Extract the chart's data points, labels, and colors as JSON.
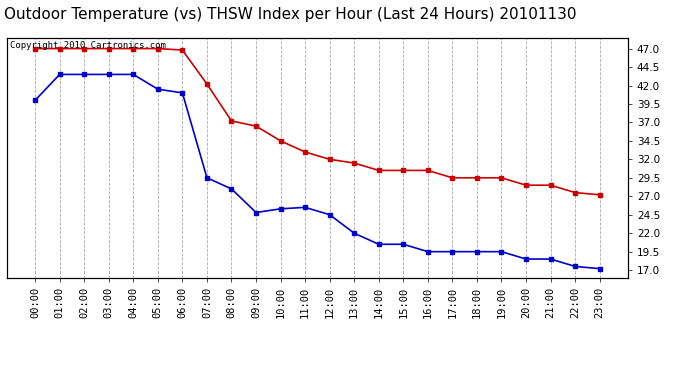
{
  "title": "Outdoor Temperature (vs) THSW Index per Hour (Last 24 Hours) 20101130",
  "copyright_text": "Copyright 2010 Cartronics.com",
  "x_labels": [
    "00:00",
    "01:00",
    "02:00",
    "03:00",
    "04:00",
    "05:00",
    "06:00",
    "07:00",
    "08:00",
    "09:00",
    "10:00",
    "11:00",
    "12:00",
    "13:00",
    "14:00",
    "15:00",
    "16:00",
    "17:00",
    "18:00",
    "19:00",
    "20:00",
    "21:00",
    "22:00",
    "23:00"
  ],
  "blue_data": [
    40.0,
    43.5,
    43.5,
    43.5,
    43.5,
    41.5,
    41.0,
    29.5,
    28.0,
    24.8,
    25.3,
    25.5,
    24.5,
    22.0,
    20.5,
    20.5,
    19.5,
    19.5,
    19.5,
    19.5,
    18.5,
    18.5,
    17.5,
    17.2
  ],
  "red_data": [
    47.0,
    47.0,
    47.0,
    47.0,
    47.0,
    47.0,
    46.8,
    42.2,
    37.2,
    36.5,
    34.5,
    33.0,
    32.0,
    31.5,
    30.5,
    30.5,
    30.5,
    29.5,
    29.5,
    29.5,
    28.5,
    28.5,
    27.5,
    27.2
  ],
  "blue_color": "#0000cc",
  "red_color": "#cc0000",
  "bg_color": "#ffffff",
  "grid_color": "#aaaaaa",
  "ylim": [
    16.0,
    48.5
  ],
  "yticks": [
    17.0,
    19.5,
    22.0,
    24.5,
    27.0,
    29.5,
    32.0,
    34.5,
    37.0,
    39.5,
    42.0,
    44.5,
    47.0
  ],
  "title_fontsize": 11,
  "tick_fontsize": 7.5,
  "copyright_fontsize": 6.5
}
